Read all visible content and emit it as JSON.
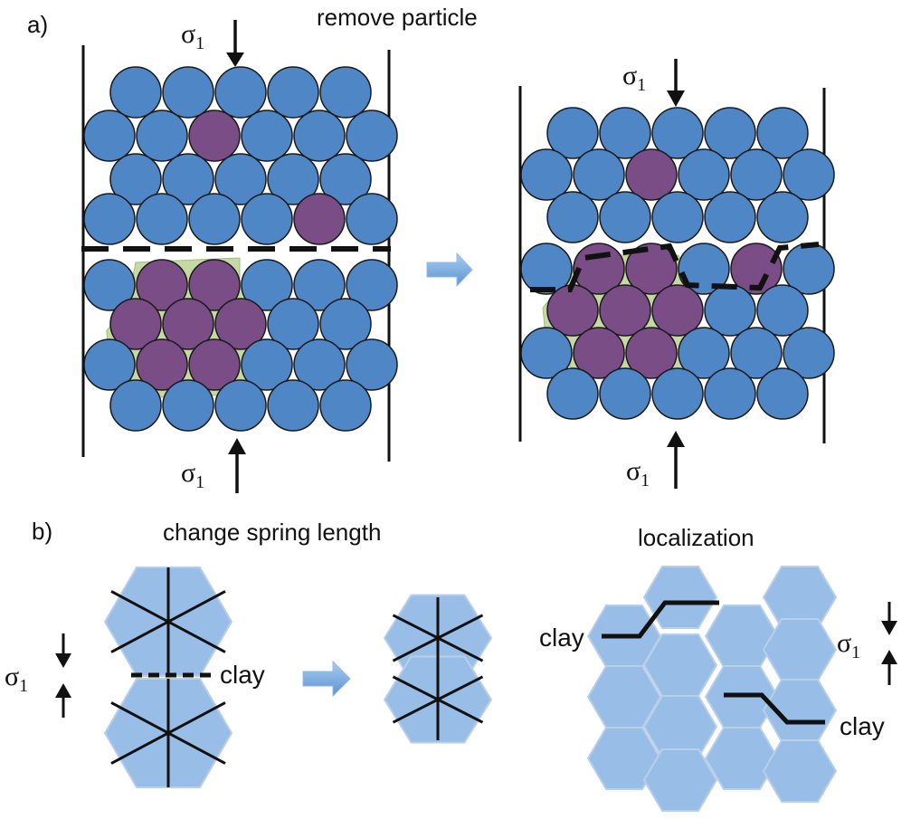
{
  "panel_a": {
    "label": "a)",
    "caption": "remove particle",
    "sigma": "σ",
    "sigma_sub": "1"
  },
  "panel_b": {
    "label": "b)",
    "caption_left": "change spring length",
    "caption_right": "localization",
    "clay": "clay",
    "sigma": "σ",
    "sigma_sub": "1"
  },
  "colors": {
    "particle": "#4f86c6",
    "particle_clay": "#7a4d86",
    "clay_fill": "#c6d9a4",
    "hexagon": "#98bde6",
    "arrow": "#6fa5dc",
    "stroke": "#111111"
  }
}
